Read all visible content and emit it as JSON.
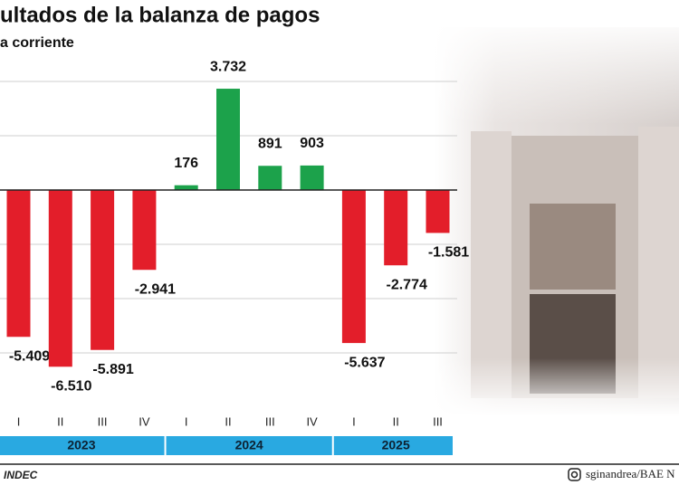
{
  "chart_data": {
    "type": "bar",
    "title": "ultados de la balanza de pagos",
    "subtitle": "a corriente",
    "groups": [
      {
        "name": "2023",
        "categories": [
          "I",
          "II",
          "III",
          "IV"
        ],
        "values": [
          -5409,
          -6510,
          -5891,
          -2941
        ],
        "value_labels": [
          "-5.409",
          "-6.510",
          "-5.891",
          "-2.941"
        ]
      },
      {
        "name": "2024",
        "categories": [
          "I",
          "II",
          "III",
          "IV"
        ],
        "values": [
          176,
          3732,
          891,
          903
        ],
        "value_labels": [
          "176",
          "3.732",
          "891",
          "903"
        ]
      },
      {
        "name": "2025",
        "categories": [
          "I",
          "II",
          "III"
        ],
        "values": [
          -5637,
          -2774,
          -1581
        ],
        "value_labels": [
          "-5.637",
          "-2.774",
          "-1.581"
        ]
      }
    ],
    "positive_color": "#1ca24b",
    "negative_color": "#e31e2a",
    "ylim": [
      -7800,
      4600
    ],
    "yticks": [
      -6000,
      -4000,
      -2000,
      0,
      2000,
      4000
    ],
    "grid": true,
    "source": "INDEC",
    "credit": "sginandrea/BAE N"
  }
}
